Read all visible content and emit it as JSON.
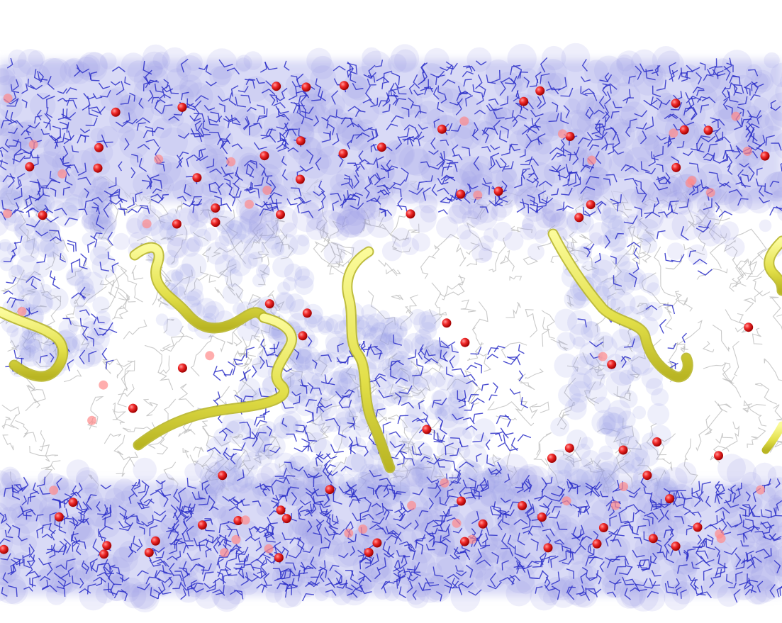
{
  "scene": {
    "kind": "molecular-dynamics-render",
    "background_color": "#ffffff",
    "colors": {
      "water_surface": "#9a9ee6",
      "water_surface_light": "#c9cbf2",
      "water_sticks": "#2b2fc8",
      "lipid_tails": "#b8b8b8",
      "oxygen_atoms": "#e81c1c",
      "oxygen_highlight": "#ff8a8a",
      "peptide_ribbon": "#e6e65a",
      "peptide_ribbon_edge": "#b8b62a"
    },
    "components": [
      {
        "name": "upper-water-layer",
        "count_hint": "dense"
      },
      {
        "name": "lower-water-layer",
        "count_hint": "dense"
      },
      {
        "name": "membrane-core-lipids",
        "count_hint": "dense"
      },
      {
        "name": "peptide-ribbons",
        "count": 6
      },
      {
        "name": "oxygen-atoms",
        "count_hint": "many"
      }
    ]
  }
}
